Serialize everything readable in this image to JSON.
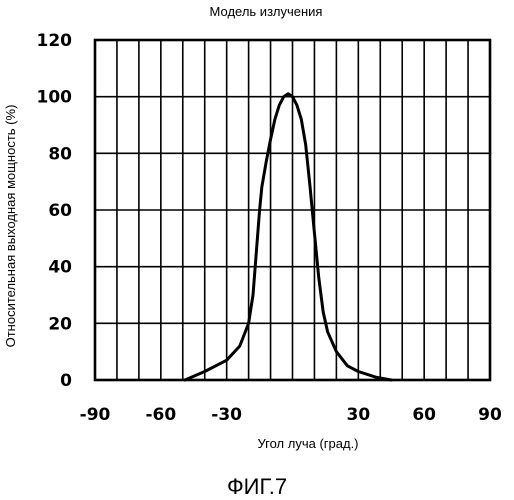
{
  "chart_data": {
    "type": "line",
    "title": "Модель излучения",
    "xlabel": "Угол луча (град.)",
    "ylabel": "Относительная выходная мощность (%)",
    "caption": "ФИГ.7",
    "xlim": [
      -90,
      90
    ],
    "ylim": [
      0,
      120
    ],
    "x_ticks": [
      -90,
      -60,
      -30,
      0,
      30,
      60,
      90
    ],
    "x_tick_labels": [
      "-90",
      "-60",
      "-30",
      "",
      "30",
      "60",
      "90"
    ],
    "y_ticks": [
      0,
      20,
      40,
      60,
      80,
      100,
      120
    ],
    "y_tick_labels": [
      "0",
      "20",
      "40",
      "60",
      "80",
      "100",
      "120"
    ],
    "grid": true,
    "series": [
      {
        "x": [
          -49,
          -40,
          -30,
          -24,
          -20,
          -18,
          -17,
          -16,
          -15,
          -14,
          -12,
          -10,
          -8,
          -6,
          -4,
          -2,
          0,
          2,
          4,
          6,
          8,
          10,
          11,
          12,
          13,
          14,
          16,
          20,
          25,
          30,
          38,
          45
        ],
        "y": [
          0,
          3,
          7,
          12,
          20,
          30,
          40,
          50,
          60,
          68,
          77,
          85,
          92,
          97,
          100,
          101,
          100,
          97,
          92,
          83,
          68,
          52,
          44,
          36,
          30,
          24,
          17,
          10,
          5,
          3,
          1,
          0
        ]
      }
    ]
  }
}
